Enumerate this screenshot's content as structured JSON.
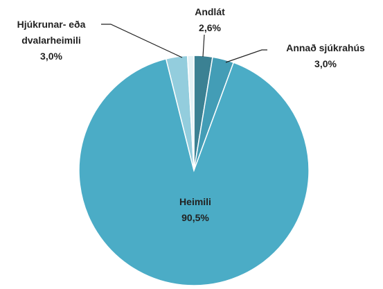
{
  "chart_data": {
    "type": "pie",
    "categories": [
      "Andlát",
      "Annað sjúkrahús",
      "Heimili",
      "Hjúkrunar- eða dvalarheimili",
      null
    ],
    "values": [
      2.6,
      3.0,
      90.5,
      3.0,
      0.9
    ],
    "value_labels": [
      "2,6%",
      "3,0%",
      "90,5%",
      "3,0%",
      null
    ],
    "colors": [
      "#3b8193",
      "#439db6",
      "#4bacc6",
      "#93cddd",
      "#e4f2f6"
    ]
  }
}
